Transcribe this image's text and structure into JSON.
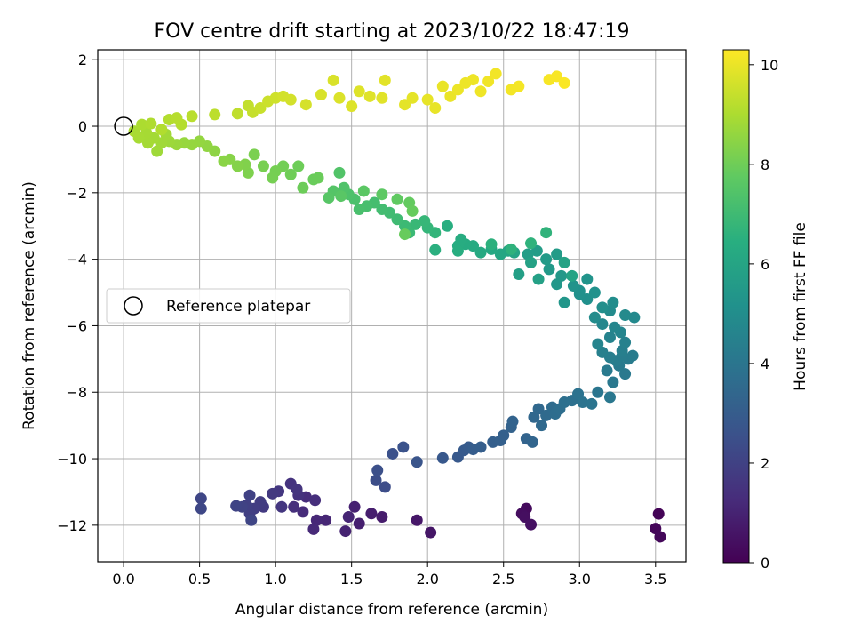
{
  "chart_data": {
    "type": "scatter",
    "title": "FOV centre drift starting at 2023/10/22 18:47:19",
    "xlabel": "Angular distance from reference (arcmin)",
    "ylabel": "Rotation from reference (arcmin)",
    "xlim": [
      -0.17,
      3.7
    ],
    "ylim": [
      -13.1,
      2.3
    ],
    "xticks": [
      "0.0",
      "0.5",
      "1.0",
      "1.5",
      "2.0",
      "2.5",
      "3.0",
      "3.5"
    ],
    "xtick_values": [
      0,
      0.5,
      1.0,
      1.5,
      2.0,
      2.5,
      3.0,
      3.5
    ],
    "yticks": [
      "2",
      "0",
      "−2",
      "−4",
      "−6",
      "−8",
      "−10",
      "−12"
    ],
    "ytick_values": [
      2,
      0,
      -2,
      -4,
      -6,
      -8,
      -10,
      -12
    ],
    "grid": true,
    "colormap": "viridis",
    "colorbar": {
      "label": "Hours from first FF file",
      "range": [
        0,
        10.3
      ],
      "ticks": [
        "0",
        "2",
        "4",
        "6",
        "8",
        "10"
      ],
      "tick_values": [
        0,
        2,
        4,
        6,
        8,
        10
      ]
    },
    "legend": {
      "position": "center-left",
      "entries": [
        "Reference platepar"
      ]
    },
    "reference_point": {
      "x": 0.0,
      "y": 0.0
    },
    "points": [
      {
        "x": 3.52,
        "y": -11.66,
        "h": 0.1
      },
      {
        "x": 3.5,
        "y": -12.1,
        "h": 0.15
      },
      {
        "x": 3.53,
        "y": -12.35,
        "h": 0.2
      },
      {
        "x": 2.65,
        "y": -11.5,
        "h": 0.3
      },
      {
        "x": 2.62,
        "y": -11.65,
        "h": 0.35
      },
      {
        "x": 2.64,
        "y": -11.75,
        "h": 0.4
      },
      {
        "x": 2.68,
        "y": -11.98,
        "h": 0.45
      },
      {
        "x": 2.02,
        "y": -12.22,
        "h": 0.6
      },
      {
        "x": 1.93,
        "y": -11.85,
        "h": 0.65
      },
      {
        "x": 1.7,
        "y": -11.75,
        "h": 0.8
      },
      {
        "x": 1.63,
        "y": -11.65,
        "h": 0.85
      },
      {
        "x": 1.55,
        "y": -11.95,
        "h": 0.9
      },
      {
        "x": 1.52,
        "y": -11.45,
        "h": 0.95
      },
      {
        "x": 1.46,
        "y": -12.18,
        "h": 1.0
      },
      {
        "x": 1.48,
        "y": -11.75,
        "h": 1.05
      },
      {
        "x": 1.33,
        "y": -11.85,
        "h": 1.1
      },
      {
        "x": 1.27,
        "y": -11.85,
        "h": 1.15
      },
      {
        "x": 1.25,
        "y": -12.12,
        "h": 1.2
      },
      {
        "x": 1.18,
        "y": -11.6,
        "h": 1.25
      },
      {
        "x": 1.2,
        "y": -11.15,
        "h": 1.3
      },
      {
        "x": 1.26,
        "y": -11.25,
        "h": 1.35
      },
      {
        "x": 1.12,
        "y": -11.45,
        "h": 1.4
      },
      {
        "x": 1.15,
        "y": -11.1,
        "h": 1.45
      },
      {
        "x": 1.1,
        "y": -10.75,
        "h": 1.5
      },
      {
        "x": 1.14,
        "y": -10.92,
        "h": 1.55
      },
      {
        "x": 1.04,
        "y": -11.45,
        "h": 1.6
      },
      {
        "x": 1.02,
        "y": -10.98,
        "h": 1.65
      },
      {
        "x": 0.98,
        "y": -11.05,
        "h": 1.7
      },
      {
        "x": 0.92,
        "y": -11.45,
        "h": 1.75
      },
      {
        "x": 0.9,
        "y": -11.3,
        "h": 1.8
      },
      {
        "x": 0.86,
        "y": -11.5,
        "h": 1.85
      },
      {
        "x": 0.83,
        "y": -11.65,
        "h": 1.9
      },
      {
        "x": 0.81,
        "y": -11.4,
        "h": 1.95
      },
      {
        "x": 0.83,
        "y": -11.1,
        "h": 2.0
      },
      {
        "x": 0.78,
        "y": -11.45,
        "h": 2.05
      },
      {
        "x": 0.74,
        "y": -11.42,
        "h": 2.1
      },
      {
        "x": 0.84,
        "y": -11.85,
        "h": 2.12
      },
      {
        "x": 0.51,
        "y": -11.2,
        "h": 2.15
      },
      {
        "x": 0.51,
        "y": -11.5,
        "h": 2.2
      },
      {
        "x": 1.72,
        "y": -10.85,
        "h": 2.4
      },
      {
        "x": 1.66,
        "y": -10.65,
        "h": 2.45
      },
      {
        "x": 1.67,
        "y": -10.35,
        "h": 2.5
      },
      {
        "x": 1.77,
        "y": -9.85,
        "h": 2.55
      },
      {
        "x": 1.84,
        "y": -9.65,
        "h": 2.6
      },
      {
        "x": 1.93,
        "y": -10.1,
        "h": 2.7
      },
      {
        "x": 2.1,
        "y": -9.98,
        "h": 2.8
      },
      {
        "x": 2.2,
        "y": -9.95,
        "h": 2.85
      },
      {
        "x": 2.24,
        "y": -9.75,
        "h": 2.9
      },
      {
        "x": 2.27,
        "y": -9.65,
        "h": 2.95
      },
      {
        "x": 2.3,
        "y": -9.72,
        "h": 3.0
      },
      {
        "x": 2.35,
        "y": -9.65,
        "h": 3.05
      },
      {
        "x": 2.43,
        "y": -9.5,
        "h": 3.1
      },
      {
        "x": 2.5,
        "y": -9.3,
        "h": 3.15
      },
      {
        "x": 2.55,
        "y": -9.05,
        "h": 3.2
      },
      {
        "x": 2.56,
        "y": -8.88,
        "h": 3.25
      },
      {
        "x": 2.65,
        "y": -9.4,
        "h": 3.3
      },
      {
        "x": 2.69,
        "y": -9.5,
        "h": 3.35
      },
      {
        "x": 2.7,
        "y": -8.75,
        "h": 3.4
      },
      {
        "x": 2.73,
        "y": -8.5,
        "h": 3.45
      },
      {
        "x": 2.75,
        "y": -9.0,
        "h": 3.5
      },
      {
        "x": 2.78,
        "y": -8.7,
        "h": 3.55
      },
      {
        "x": 2.82,
        "y": -8.45,
        "h": 3.6
      },
      {
        "x": 2.84,
        "y": -8.65,
        "h": 3.65
      },
      {
        "x": 2.87,
        "y": -8.5,
        "h": 3.7
      },
      {
        "x": 2.9,
        "y": -8.3,
        "h": 3.75
      },
      {
        "x": 2.95,
        "y": -8.25,
        "h": 3.8
      },
      {
        "x": 2.99,
        "y": -8.05,
        "h": 3.85
      },
      {
        "x": 3.02,
        "y": -8.3,
        "h": 3.9
      },
      {
        "x": 3.08,
        "y": -8.35,
        "h": 3.95
      },
      {
        "x": 3.12,
        "y": -8.0,
        "h": 4.0
      },
      {
        "x": 3.2,
        "y": -8.15,
        "h": 4.05
      },
      {
        "x": 3.22,
        "y": -7.7,
        "h": 4.1
      },
      {
        "x": 3.3,
        "y": -7.45,
        "h": 4.15
      },
      {
        "x": 3.26,
        "y": -7.2,
        "h": 4.2
      },
      {
        "x": 3.32,
        "y": -7.0,
        "h": 4.25
      },
      {
        "x": 3.24,
        "y": -7.05,
        "h": 4.3
      },
      {
        "x": 3.2,
        "y": -6.95,
        "h": 4.35
      },
      {
        "x": 3.28,
        "y": -6.75,
        "h": 4.4
      },
      {
        "x": 3.15,
        "y": -6.8,
        "h": 4.45
      },
      {
        "x": 3.3,
        "y": -6.5,
        "h": 4.5
      },
      {
        "x": 3.2,
        "y": -6.35,
        "h": 4.55
      },
      {
        "x": 3.12,
        "y": -6.55,
        "h": 4.6
      },
      {
        "x": 3.27,
        "y": -6.2,
        "h": 4.65
      },
      {
        "x": 3.23,
        "y": -6.05,
        "h": 4.7
      },
      {
        "x": 3.15,
        "y": -5.95,
        "h": 4.75
      },
      {
        "x": 3.36,
        "y": -5.75,
        "h": 4.8
      },
      {
        "x": 3.3,
        "y": -5.68,
        "h": 4.85
      },
      {
        "x": 3.2,
        "y": -5.55,
        "h": 4.9
      },
      {
        "x": 3.1,
        "y": -5.75,
        "h": 4.95
      },
      {
        "x": 3.22,
        "y": -5.3,
        "h": 5.0
      },
      {
        "x": 3.15,
        "y": -5.45,
        "h": 5.05
      },
      {
        "x": 3.05,
        "y": -5.2,
        "h": 5.1
      },
      {
        "x": 3.0,
        "y": -5.05,
        "h": 5.15
      },
      {
        "x": 3.1,
        "y": -5.0,
        "h": 5.2
      },
      {
        "x": 2.96,
        "y": -4.8,
        "h": 5.25
      },
      {
        "x": 3.05,
        "y": -4.6,
        "h": 5.3
      },
      {
        "x": 2.9,
        "y": -5.3,
        "h": 5.35
      },
      {
        "x": 2.85,
        "y": -4.75,
        "h": 5.4
      },
      {
        "x": 2.88,
        "y": -4.5,
        "h": 5.45
      },
      {
        "x": 2.8,
        "y": -4.3,
        "h": 5.5
      },
      {
        "x": 2.78,
        "y": -4.0,
        "h": 5.55
      },
      {
        "x": 2.85,
        "y": -3.85,
        "h": 5.6
      },
      {
        "x": 2.72,
        "y": -3.75,
        "h": 5.65
      },
      {
        "x": 2.66,
        "y": -3.85,
        "h": 5.7
      },
      {
        "x": 2.6,
        "y": -4.45,
        "h": 5.75
      },
      {
        "x": 2.73,
        "y": -4.6,
        "h": 5.8
      },
      {
        "x": 2.68,
        "y": -4.1,
        "h": 5.85
      },
      {
        "x": 2.9,
        "y": -4.1,
        "h": 5.9
      },
      {
        "x": 2.95,
        "y": -4.5,
        "h": 5.95
      },
      {
        "x": 2.57,
        "y": -3.8,
        "h": 6.0
      },
      {
        "x": 2.53,
        "y": -3.75,
        "h": 6.05
      },
      {
        "x": 2.48,
        "y": -3.85,
        "h": 6.1
      },
      {
        "x": 2.42,
        "y": -3.7,
        "h": 6.15
      },
      {
        "x": 2.35,
        "y": -3.8,
        "h": 6.2
      },
      {
        "x": 2.3,
        "y": -3.6,
        "h": 6.25
      },
      {
        "x": 2.25,
        "y": -3.55,
        "h": 6.3
      },
      {
        "x": 2.22,
        "y": -3.4,
        "h": 6.35
      },
      {
        "x": 2.2,
        "y": -3.75,
        "h": 6.4
      },
      {
        "x": 2.13,
        "y": -3.0,
        "h": 6.45
      },
      {
        "x": 2.05,
        "y": -3.72,
        "h": 6.5
      },
      {
        "x": 2.42,
        "y": -3.55,
        "h": 6.55
      },
      {
        "x": 2.55,
        "y": -3.7,
        "h": 6.6
      },
      {
        "x": 2.68,
        "y": -3.52,
        "h": 6.62
      },
      {
        "x": 2.78,
        "y": -3.2,
        "h": 6.65
      },
      {
        "x": 2.05,
        "y": -3.2,
        "h": 6.7
      },
      {
        "x": 2.0,
        "y": -3.05,
        "h": 6.75
      },
      {
        "x": 1.98,
        "y": -2.85,
        "h": 6.8
      },
      {
        "x": 1.92,
        "y": -2.95,
        "h": 6.85
      },
      {
        "x": 1.88,
        "y": -3.2,
        "h": 6.9
      },
      {
        "x": 1.85,
        "y": -3.0,
        "h": 6.95
      },
      {
        "x": 1.8,
        "y": -2.8,
        "h": 7.0
      },
      {
        "x": 1.75,
        "y": -2.6,
        "h": 7.05
      },
      {
        "x": 1.7,
        "y": -2.5,
        "h": 7.1
      },
      {
        "x": 1.65,
        "y": -2.3,
        "h": 7.15
      },
      {
        "x": 1.6,
        "y": -2.4,
        "h": 7.2
      },
      {
        "x": 1.55,
        "y": -2.5,
        "h": 7.25
      },
      {
        "x": 1.52,
        "y": -2.2,
        "h": 7.3
      },
      {
        "x": 1.48,
        "y": -2.05,
        "h": 7.35
      },
      {
        "x": 1.45,
        "y": -1.85,
        "h": 7.4
      },
      {
        "x": 1.42,
        "y": -1.4,
        "h": 7.45
      },
      {
        "x": 1.38,
        "y": -1.95,
        "h": 7.5
      },
      {
        "x": 1.35,
        "y": -2.15,
        "h": 7.55
      },
      {
        "x": 1.43,
        "y": -2.1,
        "h": 7.6
      },
      {
        "x": 1.58,
        "y": -1.95,
        "h": 7.65
      },
      {
        "x": 1.7,
        "y": -2.05,
        "h": 7.7
      },
      {
        "x": 1.8,
        "y": -2.2,
        "h": 7.75
      },
      {
        "x": 1.88,
        "y": -2.3,
        "h": 7.8
      },
      {
        "x": 1.9,
        "y": -2.55,
        "h": 7.85
      },
      {
        "x": 1.85,
        "y": -3.25,
        "h": 7.87
      },
      {
        "x": 1.25,
        "y": -1.6,
        "h": 7.9
      },
      {
        "x": 1.18,
        "y": -1.85,
        "h": 7.95
      },
      {
        "x": 1.1,
        "y": -1.45,
        "h": 8.0
      },
      {
        "x": 1.05,
        "y": -1.2,
        "h": 8.05
      },
      {
        "x": 1.0,
        "y": -1.35,
        "h": 8.1
      },
      {
        "x": 0.98,
        "y": -1.55,
        "h": 8.12
      },
      {
        "x": 0.92,
        "y": -1.2,
        "h": 8.15
      },
      {
        "x": 0.86,
        "y": -0.85,
        "h": 8.2
      },
      {
        "x": 0.82,
        "y": -1.4,
        "h": 8.25
      },
      {
        "x": 0.8,
        "y": -1.15,
        "h": 8.3
      },
      {
        "x": 0.75,
        "y": -1.2,
        "h": 8.35
      },
      {
        "x": 0.7,
        "y": -1.0,
        "h": 8.4
      },
      {
        "x": 0.66,
        "y": -1.05,
        "h": 8.45
      },
      {
        "x": 0.6,
        "y": -0.75,
        "h": 8.5
      },
      {
        "x": 0.55,
        "y": -0.6,
        "h": 8.55
      },
      {
        "x": 0.5,
        "y": -0.45,
        "h": 8.6
      },
      {
        "x": 0.45,
        "y": -0.55,
        "h": 8.62
      },
      {
        "x": 0.4,
        "y": -0.5,
        "h": 8.65
      },
      {
        "x": 0.35,
        "y": -0.55,
        "h": 8.7
      },
      {
        "x": 0.3,
        "y": -0.45,
        "h": 8.75
      },
      {
        "x": 0.25,
        "y": -0.5,
        "h": 8.8
      },
      {
        "x": 0.2,
        "y": -0.35,
        "h": 8.85
      },
      {
        "x": 0.15,
        "y": -0.2,
        "h": 8.9
      },
      {
        "x": 0.1,
        "y": -0.35,
        "h": 8.92
      },
      {
        "x": 0.07,
        "y": -0.15,
        "h": 8.95
      },
      {
        "x": 0.12,
        "y": 0.05,
        "h": 9.0
      },
      {
        "x": 0.18,
        "y": 0.08,
        "h": 9.05
      },
      {
        "x": 0.25,
        "y": -0.1,
        "h": 9.08
      },
      {
        "x": 0.3,
        "y": 0.2,
        "h": 9.1
      },
      {
        "x": 0.35,
        "y": 0.25,
        "h": 9.15
      },
      {
        "x": 0.45,
        "y": 0.3,
        "h": 9.2
      },
      {
        "x": 0.6,
        "y": 0.35,
        "h": 9.25
      },
      {
        "x": 0.75,
        "y": 0.38,
        "h": 9.3
      },
      {
        "x": 0.82,
        "y": 0.62,
        "h": 9.35
      },
      {
        "x": 0.85,
        "y": 0.42,
        "h": 9.4
      },
      {
        "x": 0.9,
        "y": 0.55,
        "h": 9.45
      },
      {
        "x": 0.95,
        "y": 0.75,
        "h": 9.5
      },
      {
        "x": 1.0,
        "y": 0.85,
        "h": 9.55
      },
      {
        "x": 1.05,
        "y": 0.9,
        "h": 9.6
      },
      {
        "x": 1.1,
        "y": 0.8,
        "h": 9.62
      },
      {
        "x": 1.2,
        "y": 0.65,
        "h": 9.65
      },
      {
        "x": 1.3,
        "y": 0.95,
        "h": 9.7
      },
      {
        "x": 1.38,
        "y": 1.38,
        "h": 9.72
      },
      {
        "x": 1.42,
        "y": 0.85,
        "h": 9.75
      },
      {
        "x": 1.5,
        "y": 0.6,
        "h": 9.78
      },
      {
        "x": 1.55,
        "y": 1.05,
        "h": 9.8
      },
      {
        "x": 1.62,
        "y": 0.9,
        "h": 9.82
      },
      {
        "x": 1.7,
        "y": 0.85,
        "h": 9.85
      },
      {
        "x": 1.72,
        "y": 1.38,
        "h": 9.87
      },
      {
        "x": 1.85,
        "y": 0.65,
        "h": 9.9
      },
      {
        "x": 1.9,
        "y": 0.85,
        "h": 9.92
      },
      {
        "x": 2.0,
        "y": 0.8,
        "h": 9.94
      },
      {
        "x": 2.05,
        "y": 0.55,
        "h": 9.96
      },
      {
        "x": 2.1,
        "y": 1.2,
        "h": 9.98
      },
      {
        "x": 2.15,
        "y": 0.9,
        "h": 10.0
      },
      {
        "x": 2.2,
        "y": 1.1,
        "h": 10.02
      },
      {
        "x": 2.25,
        "y": 1.3,
        "h": 10.04
      },
      {
        "x": 2.3,
        "y": 1.4,
        "h": 10.06
      },
      {
        "x": 2.35,
        "y": 1.05,
        "h": 10.08
      },
      {
        "x": 2.4,
        "y": 1.35,
        "h": 10.1
      },
      {
        "x": 2.45,
        "y": 1.58,
        "h": 10.12
      },
      {
        "x": 2.55,
        "y": 1.1,
        "h": 10.14
      },
      {
        "x": 2.6,
        "y": 1.2,
        "h": 10.16
      },
      {
        "x": 2.8,
        "y": 1.4,
        "h": 10.2
      },
      {
        "x": 2.85,
        "y": 1.5,
        "h": 10.22
      },
      {
        "x": 2.9,
        "y": 1.3,
        "h": 10.25
      },
      {
        "x": 0.22,
        "y": -0.75,
        "h": 8.78
      },
      {
        "x": 0.28,
        "y": -0.25,
        "h": 8.82
      },
      {
        "x": 0.16,
        "y": -0.5,
        "h": 8.88
      },
      {
        "x": 0.38,
        "y": 0.05,
        "h": 9.12
      },
      {
        "x": 1.28,
        "y": -1.55,
        "h": 7.92
      },
      {
        "x": 1.15,
        "y": -1.2,
        "h": 7.97
      },
      {
        "x": 2.48,
        "y": -9.45,
        "h": 3.12
      },
      {
        "x": 2.2,
        "y": -3.6,
        "h": 6.37
      },
      {
        "x": 3.18,
        "y": -7.35,
        "h": 4.18
      },
      {
        "x": 3.35,
        "y": -6.9,
        "h": 4.28
      },
      {
        "x": 3.28,
        "y": -6.9,
        "h": 4.32
      },
      {
        "x": 3.0,
        "y": -4.95,
        "h": 5.17
      }
    ]
  }
}
